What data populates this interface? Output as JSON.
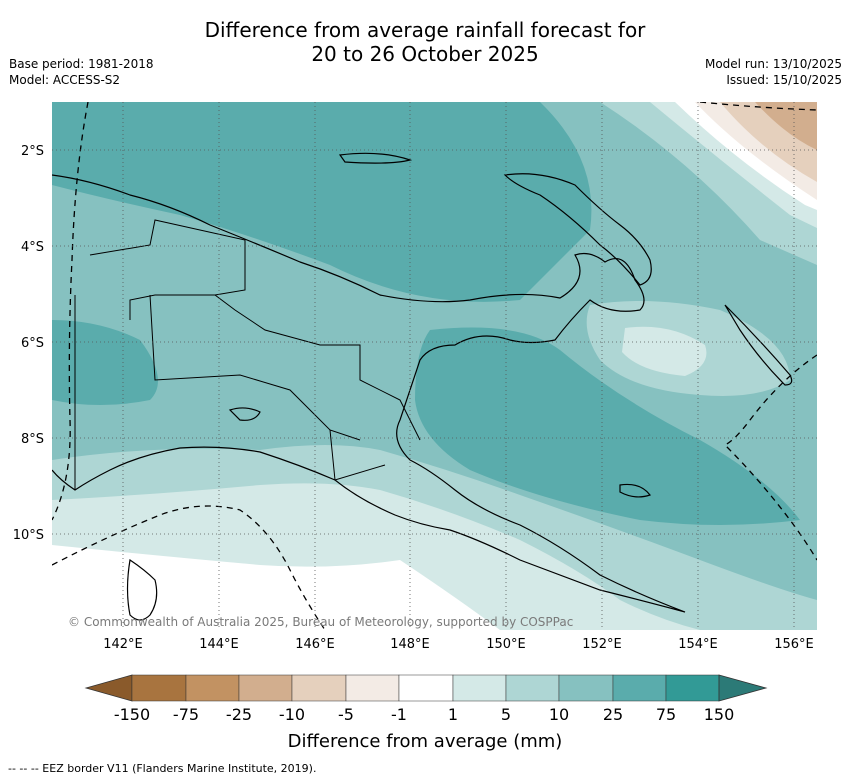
{
  "header": {
    "title_line1": "Difference from average rainfall forecast for",
    "title_line2": "20 to 26 October 2025",
    "base_period": "Base period: 1981-2018",
    "model": "Model: ACCESS-S2",
    "model_run": "Model run: 13/10/2025",
    "issued": "Issued: 15/10/2025"
  },
  "map": {
    "lat_labels": [
      "2°S",
      "4°S",
      "6°S",
      "8°S",
      "10°S"
    ],
    "lon_labels": [
      "142°E",
      "144°E",
      "146°E",
      "148°E",
      "150°E",
      "152°E",
      "154°E",
      "156°E"
    ],
    "copyright": "© Commonwealth of Australia 2025, Bureau of Meteorology, supported by COSPPac"
  },
  "colorbar": {
    "title": "Difference from average (mm)",
    "labels": [
      "-150",
      "-75",
      "-25",
      "-10",
      "-5",
      "-1",
      "1",
      "5",
      "10",
      "25",
      "75",
      "150"
    ],
    "colors": {
      "below_min": "#8a5a2b",
      "b1": "#a8743f",
      "b2": "#c29262",
      "b3": "#d2ae8e",
      "b4": "#e5d0bd",
      "b5": "#f3ebe5",
      "neutral": "#ffffff",
      "g1": "#d4e9e7",
      "g2": "#aed6d4",
      "g3": "#86c1c0",
      "g4": "#5aacac",
      "g5": "#329a96",
      "above_max": "#2c7a77"
    }
  },
  "footer": {
    "legend_text": "-- -- -- EEZ border V11 (Flanders Marine Institute, 2019)."
  }
}
